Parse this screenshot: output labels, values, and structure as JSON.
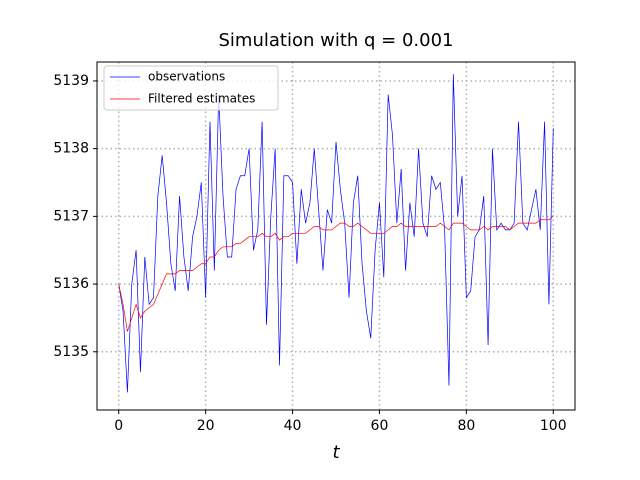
{
  "chart_data": {
    "type": "line",
    "title": "Simulation with q = 0.001",
    "x_label": "t",
    "x": [
      0,
      1,
      2,
      3,
      4,
      5,
      6,
      7,
      8,
      9,
      10,
      11,
      12,
      13,
      14,
      15,
      16,
      17,
      18,
      19,
      20,
      21,
      22,
      23,
      24,
      25,
      26,
      27,
      28,
      29,
      30,
      31,
      32,
      33,
      34,
      35,
      36,
      37,
      38,
      39,
      40,
      41,
      42,
      43,
      44,
      45,
      46,
      47,
      48,
      49,
      50,
      51,
      52,
      53,
      54,
      55,
      56,
      57,
      58,
      59,
      60,
      61,
      62,
      63,
      64,
      65,
      66,
      67,
      68,
      69,
      70,
      71,
      72,
      73,
      74,
      75,
      76,
      77,
      78,
      79,
      80,
      81,
      82,
      83,
      84,
      85,
      86,
      87,
      88,
      89,
      90,
      91,
      92,
      93,
      94,
      95,
      96,
      97,
      98,
      99,
      100
    ],
    "series": [
      {
        "name": "observations",
        "color": "#0000ff",
        "values": [
          5136.0,
          5135.6,
          5134.4,
          5136.0,
          5136.5,
          5134.7,
          5136.4,
          5135.7,
          5135.8,
          5137.3,
          5137.9,
          5137.2,
          5136.3,
          5135.9,
          5137.3,
          5136.4,
          5135.9,
          5136.7,
          5137.0,
          5137.5,
          5135.8,
          5138.4,
          5136.2,
          5138.8,
          5137.3,
          5136.4,
          5136.4,
          5137.4,
          5137.6,
          5137.6,
          5138.0,
          5136.5,
          5136.8,
          5138.4,
          5135.4,
          5137.0,
          5138.0,
          5134.8,
          5137.6,
          5137.6,
          5137.5,
          5136.3,
          5137.4,
          5136.9,
          5137.2,
          5138.0,
          5137.1,
          5136.2,
          5137.1,
          5136.9,
          5138.1,
          5137.4,
          5136.9,
          5135.8,
          5137.2,
          5137.6,
          5136.3,
          5135.6,
          5135.2,
          5136.5,
          5137.2,
          5136.1,
          5138.8,
          5138.2,
          5136.9,
          5137.7,
          5136.2,
          5137.2,
          5136.7,
          5138.0,
          5136.9,
          5136.7,
          5137.6,
          5137.4,
          5137.5,
          5136.8,
          5134.5,
          5139.1,
          5137.0,
          5137.6,
          5135.8,
          5135.9,
          5136.7,
          5136.8,
          5137.3,
          5135.1,
          5138.0,
          5136.8,
          5136.9,
          5136.8,
          5136.8,
          5136.9,
          5138.4,
          5136.9,
          5136.8,
          5137.1,
          5137.4,
          5136.8,
          5138.4,
          5135.7,
          5138.3
        ]
      },
      {
        "name": "Filtered estimates",
        "color": "#ff0000",
        "values": [
          5136.0,
          5135.7,
          5135.3,
          5135.5,
          5135.7,
          5135.5,
          5135.6,
          5135.65,
          5135.7,
          5135.85,
          5136.0,
          5136.15,
          5136.15,
          5136.15,
          5136.2,
          5136.2,
          5136.2,
          5136.2,
          5136.25,
          5136.3,
          5136.3,
          5136.4,
          5136.4,
          5136.5,
          5136.55,
          5136.55,
          5136.55,
          5136.6,
          5136.6,
          5136.65,
          5136.7,
          5136.7,
          5136.7,
          5136.75,
          5136.7,
          5136.7,
          5136.75,
          5136.65,
          5136.7,
          5136.7,
          5136.75,
          5136.75,
          5136.75,
          5136.75,
          5136.8,
          5136.85,
          5136.85,
          5136.8,
          5136.8,
          5136.8,
          5136.85,
          5136.9,
          5136.9,
          5136.85,
          5136.85,
          5136.9,
          5136.85,
          5136.8,
          5136.75,
          5136.75,
          5136.75,
          5136.75,
          5136.8,
          5136.85,
          5136.85,
          5136.9,
          5136.85,
          5136.85,
          5136.85,
          5136.85,
          5136.85,
          5136.85,
          5136.85,
          5136.85,
          5136.9,
          5136.85,
          5136.8,
          5136.9,
          5136.9,
          5136.9,
          5136.85,
          5136.8,
          5136.8,
          5136.8,
          5136.85,
          5136.8,
          5136.85,
          5136.85,
          5136.85,
          5136.85,
          5136.8,
          5136.85,
          5136.9,
          5136.9,
          5136.9,
          5136.9,
          5136.9,
          5136.95,
          5136.95,
          5136.95,
          5137.0
        ]
      }
    ],
    "xlim": [
      -5,
      105
    ],
    "ylim": [
      5134.14,
      5139.28
    ],
    "xticks": [
      0,
      20,
      40,
      60,
      80,
      100
    ],
    "yticks": [
      5135,
      5136,
      5137,
      5138,
      5139
    ],
    "grid": true,
    "legend": "upper left"
  }
}
